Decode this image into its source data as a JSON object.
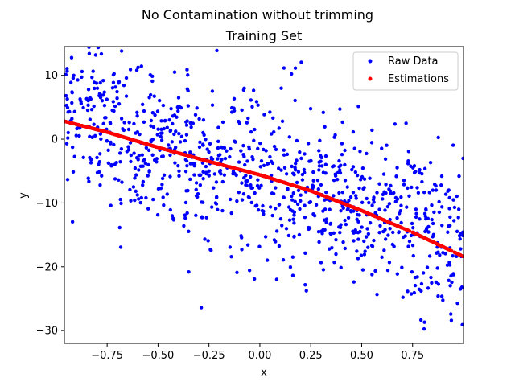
{
  "figure": {
    "suptitle": "No Contamination without trimming"
  },
  "chart_data": {
    "type": "scatter",
    "title": "Training Set",
    "xlabel": "x",
    "ylabel": "y",
    "xlim": [
      -0.96,
      1.0
    ],
    "ylim": [
      -32,
      14.5
    ],
    "x_ticks": [
      -0.75,
      -0.5,
      -0.25,
      0.0,
      0.25,
      0.5,
      0.75
    ],
    "x_tick_labels": [
      "−0.75",
      "−0.50",
      "−0.25",
      "0.00",
      "0.25",
      "0.50",
      "0.75"
    ],
    "y_ticks": [
      10,
      0,
      -10,
      -20,
      -30
    ],
    "y_tick_labels": [
      "10",
      "0",
      "−10",
      "−20",
      "−30"
    ],
    "grid": false,
    "legend_position": "top-right",
    "series": [
      {
        "name": "Raw Data",
        "color": "#0000ff",
        "marker": "dot",
        "approx_count": 1000,
        "trend": {
          "intercept": -5.5,
          "slope": -10.5,
          "noise_sd": 6.2
        },
        "x_range": [
          -0.96,
          1.0
        ]
      },
      {
        "name": "Estimations",
        "color": "#ff0000",
        "marker": "dot",
        "approx_count": 1000,
        "points": [
          {
            "x": -0.96,
            "y": 2.8
          },
          {
            "x": -0.75,
            "y": 1.1
          },
          {
            "x": -0.5,
            "y": -1.3
          },
          {
            "x": -0.25,
            "y": -3.5
          },
          {
            "x": 0.0,
            "y": -5.6
          },
          {
            "x": 0.25,
            "y": -8.1
          },
          {
            "x": 0.5,
            "y": -11.2
          },
          {
            "x": 0.75,
            "y": -14.6
          },
          {
            "x": 1.0,
            "y": -18.4
          }
        ]
      }
    ]
  }
}
